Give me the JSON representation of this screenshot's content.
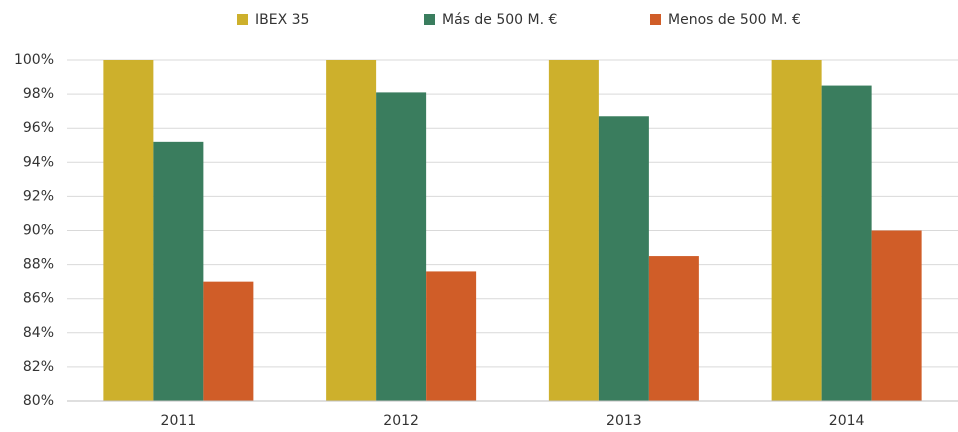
{
  "chart_data": {
    "type": "bar",
    "categories": [
      "2011",
      "2012",
      "2013",
      "2014"
    ],
    "series": [
      {
        "name": "IBEX 35",
        "color": "#cdb02c",
        "values": [
          100,
          100,
          100,
          100
        ]
      },
      {
        "name": "Más de 500 M. €",
        "color": "#3a7d5e",
        "values": [
          95.2,
          98.1,
          96.7,
          98.5
        ]
      },
      {
        "name": "Menos de 500 M. €",
        "color": "#d05d28",
        "values": [
          87.0,
          87.6,
          88.5,
          90.0
        ]
      }
    ],
    "ylim": [
      80,
      100
    ],
    "yticks": [
      {
        "value": 80,
        "label": "80%"
      },
      {
        "value": 82,
        "label": "82%"
      },
      {
        "value": 84,
        "label": "84%"
      },
      {
        "value": 86,
        "label": "86%"
      },
      {
        "value": 88,
        "label": "88%"
      },
      {
        "value": 90,
        "label": "90%"
      },
      {
        "value": 92,
        "label": "92%"
      },
      {
        "value": 94,
        "label": "94%"
      },
      {
        "value": 96,
        "label": "96%"
      },
      {
        "value": 98,
        "label": "98%"
      },
      {
        "value": 100,
        "label": "100%"
      }
    ],
    "grid": true,
    "legend": "top"
  }
}
